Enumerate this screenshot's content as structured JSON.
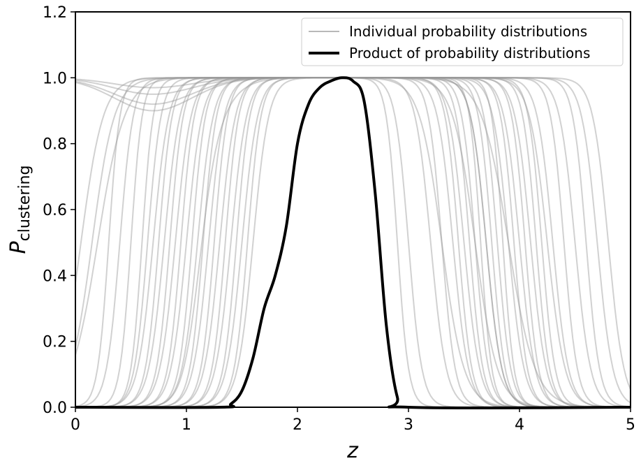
{
  "chart_data": {
    "type": "line",
    "xlabel": "z",
    "ylabel_main": "P",
    "ylabel_sub": "clustering",
    "xlim": [
      0,
      5
    ],
    "ylim": [
      0,
      1.2
    ],
    "xticks": [
      0,
      1,
      2,
      3,
      4,
      5
    ],
    "xtick_labels": [
      "0",
      "1",
      "2",
      "3",
      "4",
      "5"
    ],
    "yticks": [
      0,
      0.2,
      0.4,
      0.6,
      0.8,
      1.0,
      1.2
    ],
    "ytick_labels": [
      "0.0",
      "0.2",
      "0.4",
      "0.6",
      "0.8",
      "1.0",
      "1.2"
    ],
    "grid": false,
    "legend": {
      "placement": "top-right",
      "entries": [
        {
          "label": "Individual probability distributions",
          "color": "#b8b8b8",
          "width": 2
        },
        {
          "label": "Product of probability distributions",
          "color": "#000000",
          "width": 4
        }
      ]
    },
    "series": [
      {
        "name": "Product of probability distributions",
        "color": "#000000",
        "x": [
          0.0,
          1.3,
          1.4,
          1.5,
          1.6,
          1.7,
          1.8,
          1.9,
          2.0,
          2.1,
          2.2,
          2.3,
          2.4,
          2.5,
          2.6,
          2.7,
          2.8,
          2.9,
          3.0,
          5.0
        ],
        "y": [
          0.0,
          0.0,
          0.01,
          0.05,
          0.15,
          0.3,
          0.4,
          0.55,
          0.8,
          0.92,
          0.97,
          0.99,
          1.0,
          0.99,
          0.93,
          0.65,
          0.25,
          0.03,
          0.0,
          0.0
        ]
      }
    ],
    "individual_curves": {
      "color": "#999999",
      "count": 32,
      "note_shape": "sigmoid rise then fall",
      "curves": [
        {
          "rise": 0.6,
          "fall": 2.9,
          "base": 0.0,
          "width": 0.05
        },
        {
          "rise": 0.75,
          "fall": 3.3,
          "base": 0.0,
          "width": 0.06
        },
        {
          "rise": 0.8,
          "fall": 3.5,
          "base": 0.0,
          "width": 0.07
        },
        {
          "rise": 0.85,
          "fall": 3.6,
          "base": 0.0,
          "width": 0.06
        },
        {
          "rise": 0.9,
          "fall": 3.7,
          "base": 0.0,
          "width": 0.07
        },
        {
          "rise": 0.95,
          "fall": 3.8,
          "base": 0.0,
          "width": 0.06
        },
        {
          "rise": 1.0,
          "fall": 3.9,
          "base": 0.0,
          "width": 0.07
        },
        {
          "rise": 1.05,
          "fall": 3.95,
          "base": 0.0,
          "width": 0.06
        },
        {
          "rise": 1.1,
          "fall": 4.0,
          "base": 0.0,
          "width": 0.07
        },
        {
          "rise": 1.15,
          "fall": 4.05,
          "base": 0.0,
          "width": 0.06
        },
        {
          "rise": 1.2,
          "fall": 4.1,
          "base": 0.0,
          "width": 0.07
        },
        {
          "rise": 1.25,
          "fall": 4.2,
          "base": 0.0,
          "width": 0.06
        },
        {
          "rise": 1.3,
          "fall": 4.3,
          "base": 0.0,
          "width": 0.07
        },
        {
          "rise": 1.35,
          "fall": 4.4,
          "base": 0.0,
          "width": 0.06
        },
        {
          "rise": 1.4,
          "fall": 4.5,
          "base": 0.0,
          "width": 0.07
        },
        {
          "rise": 1.45,
          "fall": 4.6,
          "base": 0.0,
          "width": 0.06
        },
        {
          "rise": 1.5,
          "fall": 3.4,
          "base": 0.0,
          "width": 0.07
        },
        {
          "rise": 1.55,
          "fall": 3.55,
          "base": 0.0,
          "width": 0.06
        },
        {
          "rise": 0.3,
          "fall": 3.65,
          "base": 0.0,
          "width": 0.05
        },
        {
          "rise": 0.4,
          "fall": 3.75,
          "base": 0.0,
          "width": 0.06
        },
        {
          "rise": 0.5,
          "fall": 3.85,
          "base": 0.0,
          "width": 0.05
        },
        {
          "rise": 0.65,
          "fall": 4.15,
          "base": 0.0,
          "width": 0.06
        },
        {
          "rise": 0.7,
          "fall": 4.7,
          "base": 0.0,
          "width": 0.07
        },
        {
          "rise": 1.6,
          "fall": 4.8,
          "base": 0.0,
          "width": 0.07
        },
        {
          "rise": -1.0,
          "fall": 3.0,
          "base": 0.0,
          "width": 0.06,
          "dip": 0.92
        },
        {
          "rise": -1.0,
          "fall": 3.2,
          "base": 0.0,
          "width": 0.07,
          "dip": 0.95
        },
        {
          "rise": -1.0,
          "fall": 3.45,
          "base": 0.0,
          "width": 0.06,
          "dip": 0.9
        },
        {
          "rise": -1.0,
          "fall": 3.7,
          "base": 0.0,
          "width": 0.07,
          "dip": 0.97
        },
        {
          "rise": 0.05,
          "fall": 3.3,
          "base": 0.0,
          "width": 0.1
        },
        {
          "rise": 0.15,
          "fall": 3.6,
          "base": 0.0,
          "width": 0.1
        },
        {
          "rise": 0.2,
          "fall": 3.9,
          "base": 0.0,
          "width": 0.12
        },
        {
          "rise": 1.1,
          "fall": 4.25,
          "base": 0.0,
          "width": 0.08,
          "dip": 0.58
        }
      ]
    }
  }
}
